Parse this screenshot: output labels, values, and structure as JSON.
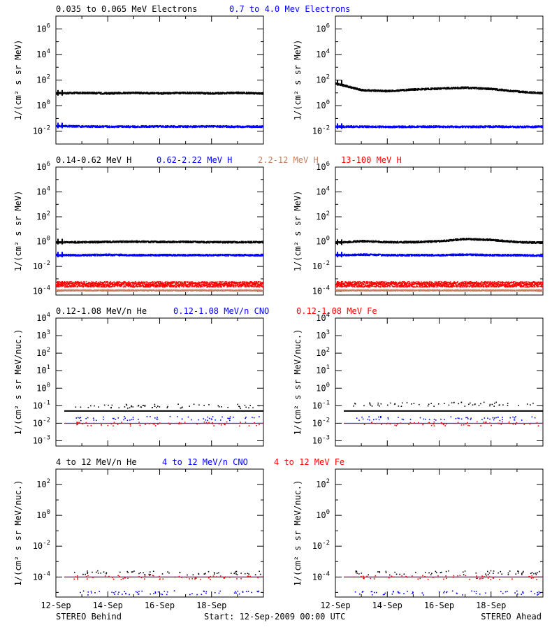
{
  "chart_data": [
    {
      "id": "electrons-behind",
      "type": "scatter",
      "scale": "log",
      "ylim": [
        0.001,
        10000000
      ],
      "yticks": [
        0.01,
        1,
        100,
        10000,
        1000000
      ],
      "ylabel": "1/(cm² s sr MeV)",
      "x_range_days": [
        0,
        8
      ],
      "xticks": [],
      "series": [
        {
          "name": "0.035 to 0.065 MeV Electrons",
          "color": "#000000",
          "profile": [
            10,
            11,
            10,
            11,
            10,
            11,
            10,
            11,
            10
          ]
        },
        {
          "name": "0.7 to 4.0 Mev Electrons",
          "color": "#0000ff",
          "profile": [
            0.028,
            0.026,
            0.025,
            0.025,
            0.026,
            0.025,
            0.026,
            0.025,
            0.025
          ]
        }
      ]
    },
    {
      "id": "electrons-ahead",
      "type": "scatter",
      "scale": "log",
      "ylim": [
        0.001,
        10000000
      ],
      "yticks": [
        0.01,
        1,
        100,
        10000,
        1000000
      ],
      "ylabel": "1/(cm² s sr MeV)",
      "x_range_days": [
        0,
        8
      ],
      "xticks": [],
      "series": [
        {
          "name": "0.035 to 0.065 MeV Electrons",
          "color": "#000000",
          "profile": [
            60,
            18,
            15,
            20,
            24,
            28,
            22,
            14,
            10
          ]
        },
        {
          "name": "0.7 to 4.0 Mev Electrons",
          "color": "#0000ff",
          "profile": [
            0.025,
            0.025,
            0.024,
            0.025,
            0.025,
            0.024,
            0.025,
            0.024,
            0.025
          ]
        }
      ]
    },
    {
      "id": "protons-behind",
      "type": "scatter",
      "scale": "log",
      "ylim": [
        5e-05,
        1000000
      ],
      "yticks": [
        0.0001,
        0.01,
        1,
        100,
        10000,
        1000000
      ],
      "ylabel": "1/(cm² s sr MeV)",
      "x_range_days": [
        0,
        8
      ],
      "xticks": [],
      "series": [
        {
          "name": "0.14-0.62 MeV H",
          "color": "#000000",
          "profile": [
            1.0,
            0.98,
            1.05,
            1.1,
            1.05,
            1.05,
            1.0,
            1.0,
            1.0
          ]
        },
        {
          "name": "0.62-2.22 MeV H",
          "color": "#0000ff",
          "profile": [
            0.09,
            0.09,
            0.095,
            0.09,
            0.09,
            0.09,
            0.09,
            0.09,
            0.09
          ]
        },
        {
          "name": "2.2-12 MeV H",
          "color": "#c08060",
          "profile": [
            0.00013,
            0.00013,
            0.00013,
            0.00013,
            0.00013,
            0.00013,
            0.00013,
            0.00013,
            0.00013
          ]
        },
        {
          "name": "13-100 MeV H",
          "color": "#ff0000",
          "profile": [
            0.0004,
            0.0004,
            0.0004,
            0.0004,
            0.0004,
            0.0004,
            0.0004,
            0.0004,
            0.0004
          ]
        }
      ]
    },
    {
      "id": "protons-ahead",
      "type": "scatter",
      "scale": "log",
      "ylim": [
        5e-05,
        1000000
      ],
      "yticks": [
        0.0001,
        0.01,
        1,
        100,
        10000,
        1000000
      ],
      "ylabel": "1/(cm² s sr MeV)",
      "x_range_days": [
        0,
        8
      ],
      "xticks": [],
      "series": [
        {
          "name": "0.14-0.62 MeV H",
          "color": "#000000",
          "profile": [
            0.9,
            1.2,
            1.0,
            1.0,
            1.2,
            1.8,
            1.5,
            1.0,
            0.9
          ]
        },
        {
          "name": "0.62-2.22 MeV H",
          "color": "#0000ff",
          "profile": [
            0.09,
            0.1,
            0.09,
            0.09,
            0.09,
            0.1,
            0.09,
            0.09,
            0.08
          ]
        },
        {
          "name": "2.2-12 MeV H",
          "color": "#c08060",
          "profile": [
            0.00013,
            0.00013,
            0.00013,
            0.00013,
            0.00013,
            0.00013,
            0.00013,
            0.00013,
            0.00013
          ]
        },
        {
          "name": "13-100 MeV H",
          "color": "#ff0000",
          "profile": [
            0.0004,
            0.0004,
            0.0004,
            0.0004,
            0.0004,
            0.0004,
            0.0004,
            0.0004,
            0.0004
          ]
        }
      ]
    },
    {
      "id": "heavy-low-behind",
      "type": "scatter",
      "scale": "log",
      "ylim": [
        0.0005,
        10000
      ],
      "yticks": [
        0.001,
        0.01,
        0.1,
        1,
        10,
        100,
        1000,
        10000
      ],
      "ylabel": "1/(cm² s sr MeV/nuc.)",
      "x_range_days": [
        0,
        8
      ],
      "xticks": [],
      "series": [
        {
          "name": "0.12-1.08 MeV/n He",
          "color": "#000000",
          "baseline": 0.05,
          "scatter_level": 0.1
        },
        {
          "name": "0.12-1.08 MeV/n CNO",
          "color": "#0000ff",
          "baseline": 0.01,
          "scatter_level": 0.02
        },
        {
          "name": "0.12-1.08 MeV Fe",
          "color": "#ff0000",
          "baseline": 0.0098,
          "scatter_level": 0.0098
        }
      ]
    },
    {
      "id": "heavy-low-ahead",
      "type": "scatter",
      "scale": "log",
      "ylim": [
        0.0005,
        10000
      ],
      "yticks": [
        0.001,
        0.01,
        0.1,
        1,
        10,
        100,
        1000,
        10000
      ],
      "ylabel": "1/(cm² s sr MeV/nuc.)",
      "x_range_days": [
        0,
        8
      ],
      "xticks": [],
      "series": [
        {
          "name": "0.12-1.08 MeV/n He",
          "color": "#000000",
          "baseline": 0.05,
          "scatter_level": 0.13
        },
        {
          "name": "0.12-1.08 MeV/n CNO",
          "color": "#0000ff",
          "baseline": 0.01,
          "scatter_level": 0.02
        },
        {
          "name": "0.12-1.08 MeV Fe",
          "color": "#ff0000",
          "baseline": 0.0098,
          "scatter_level": 0.0098
        }
      ]
    },
    {
      "id": "heavy-high-behind",
      "type": "scatter",
      "scale": "log",
      "ylim": [
        5e-06,
        1000
      ],
      "yticks": [
        0.0001,
        0.01,
        1,
        100
      ],
      "ylabel": "1/(cm² s sr MeV/nuc.)",
      "x_range_days": [
        0,
        8
      ],
      "xticks": [
        "12-Sep",
        "14-Sep",
        "16-Sep",
        "18-Sep"
      ],
      "series": [
        {
          "name": "4 to 12 MeV/n He",
          "color": "#000000",
          "baseline": 0.0001,
          "scatter_level": 0.0002
        },
        {
          "name": "4 to 12 MeV/n CNO",
          "color": "#0000ff",
          "baseline": 0.0001,
          "scatter_level": 1e-05
        },
        {
          "name": "4 to 12 MeV Fe",
          "color": "#ff0000",
          "baseline": 0.0001,
          "scatter_level": 0.0001
        }
      ]
    },
    {
      "id": "heavy-high-ahead",
      "type": "scatter",
      "scale": "log",
      "ylim": [
        5e-06,
        1000
      ],
      "yticks": [
        0.0001,
        0.01,
        1,
        100
      ],
      "ylabel": "1/(cm² s sr MeV/nuc.)",
      "x_range_days": [
        0,
        8
      ],
      "xticks": [
        "12-Sep",
        "14-Sep",
        "16-Sep",
        "18-Sep"
      ],
      "series": [
        {
          "name": "4 to 12 MeV/n He",
          "color": "#000000",
          "baseline": 0.0001,
          "scatter_level": 0.0002
        },
        {
          "name": "4 to 12 MeV/n CNO",
          "color": "#0000ff",
          "baseline": 0.0001,
          "scatter_level": 1e-05
        },
        {
          "name": "4 to 12 MeV Fe",
          "color": "#ff0000",
          "baseline": 0.0001,
          "scatter_level": 0.0001
        }
      ]
    }
  ],
  "legends": {
    "row1": [
      "0.035 to 0.065 MeV Electrons",
      "0.7 to 4.0 Mev Electrons"
    ],
    "row2": [
      "0.14-0.62 MeV H",
      "0.62-2.22 MeV H",
      "2.2-12 MeV H",
      "13-100 MeV H"
    ],
    "row3": [
      "0.12-1.08 MeV/n He",
      "0.12-1.08 MeV/n CNO",
      "0.12-1.08 MeV Fe"
    ],
    "row4": [
      "4 to 12 MeV/n He",
      "4 to 12 MeV/n CNO",
      "4 to 12 MeV Fe"
    ]
  },
  "footer": {
    "left": "STEREO Behind",
    "center": "Start: 12-Sep-2009 00:00 UTC",
    "right": "STEREO Ahead"
  },
  "colors": {
    "black": "#000000",
    "blue": "#0000ff",
    "tan": "#c08060",
    "red": "#ff0000"
  }
}
